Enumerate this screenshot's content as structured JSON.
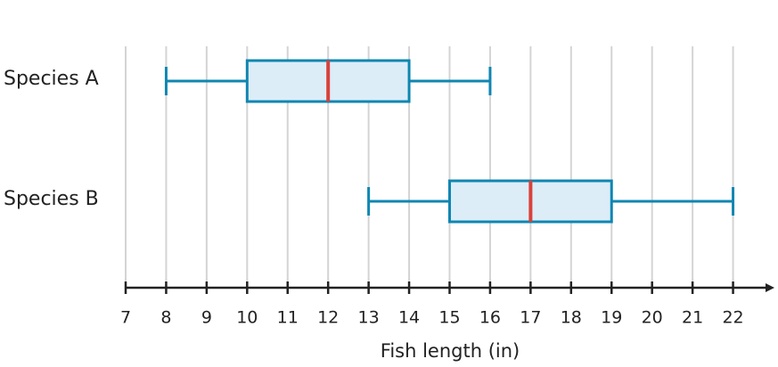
{
  "chart_data": {
    "type": "box",
    "xlabel": "Fish length (in)",
    "categories": [
      "Species A",
      "Species B"
    ],
    "boxes": [
      {
        "whislo": 8,
        "q1": 10,
        "med": 12,
        "q3": 14,
        "whishi": 16
      },
      {
        "whislo": 13,
        "q1": 15,
        "med": 17,
        "q3": 19,
        "whishi": 22
      }
    ],
    "xlim": [
      7,
      23
    ],
    "xticks": [
      7,
      8,
      9,
      10,
      11,
      12,
      13,
      14,
      15,
      16,
      17,
      18,
      19,
      20,
      21,
      22
    ],
    "grid": true,
    "box_color": "#0f86b1",
    "box_fill": "#dcedf8",
    "median_color": "#d9413b"
  }
}
